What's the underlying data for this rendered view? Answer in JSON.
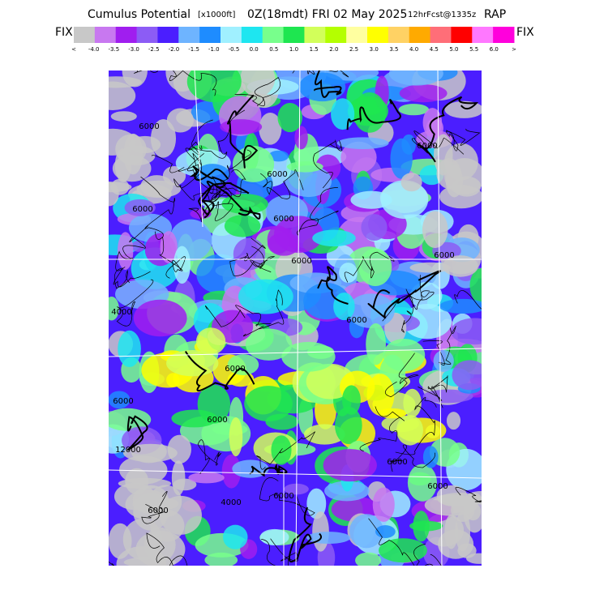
{
  "header": {
    "title": "Cumulus Potential",
    "units": "[x1000ft]",
    "valid": "0Z(18mdt) FRI 02 May 2025",
    "forecast": "12hrFcst@1335z",
    "model": "RAP",
    "left_label": "FIX",
    "right_label": "FIX"
  },
  "colorbar": {
    "colors": [
      "#c8c8c8",
      "#c878f0",
      "#a01eef",
      "#8c5cf5",
      "#4b1eff",
      "#6eb4ff",
      "#1e8cff",
      "#a0f0ff",
      "#1ee6f0",
      "#78ff8c",
      "#1ee650",
      "#d2ff5a",
      "#b4ff00",
      "#ffffa0",
      "#ffff00",
      "#ffd264",
      "#ffaa00",
      "#ff6e78",
      "#ff0000",
      "#ff78ff",
      "#ff00dc"
    ],
    "labels": [
      "<",
      "-4.0",
      "-3.5",
      "-3.0",
      "-2.5",
      "-2.0",
      "-1.5",
      "-1.0",
      "-0.5",
      "0.0",
      "0.5",
      "1.0",
      "1.5",
      "2.0",
      "2.5",
      "3.0",
      "3.5",
      "4.0",
      "4.5",
      "5.0",
      "5.5",
      "6.0",
      ">"
    ]
  },
  "map": {
    "contour_labels": [
      "6000",
      "6000",
      "6000",
      "6000",
      "6000",
      "6000",
      "6000",
      "4000",
      "6000",
      "6000",
      "6000",
      "12000",
      "6000",
      "6000",
      "6000",
      "4000",
      "6000",
      "6000"
    ]
  }
}
